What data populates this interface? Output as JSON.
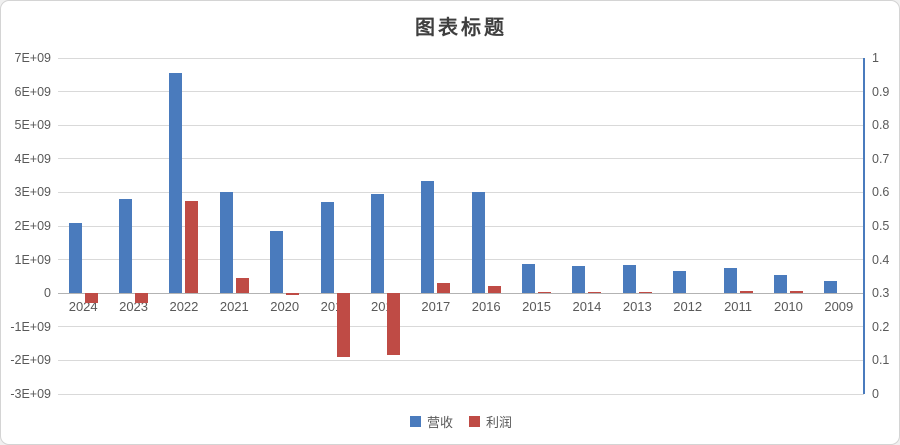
{
  "chart_data": {
    "type": "bar",
    "title": "图表标题",
    "categories": [
      "2024",
      "2023",
      "2022",
      "2021",
      "2020",
      "2019",
      "2018",
      "2017",
      "2016",
      "2015",
      "2014",
      "2013",
      "2012",
      "2011",
      "2010",
      "2009"
    ],
    "series": [
      {
        "key": "revenue",
        "name": "营收",
        "color": "#4a7bbd",
        "values": [
          2100000000,
          2800000000,
          6550000000,
          3000000000,
          1850000000,
          2700000000,
          2950000000,
          3350000000,
          3000000000,
          880000000,
          800000000,
          850000000,
          650000000,
          750000000,
          550000000,
          350000000
        ]
      },
      {
        "key": "profit",
        "name": "利润",
        "color": "#bf4b45",
        "values": [
          -300000000,
          -300000000,
          2750000000,
          450000000,
          -50000000,
          -1900000000,
          -1850000000,
          300000000,
          200000000,
          40000000,
          40000000,
          40000000,
          0,
          60000000,
          60000000,
          0
        ]
      }
    ],
    "left_axis": {
      "min": -3000000000,
      "max": 7000000000,
      "tick_step": 1000000000,
      "tick_labels": [
        "7E+09",
        "6E+09",
        "5E+09",
        "4E+09",
        "3E+09",
        "2E+09",
        "1E+09",
        "0",
        "-1E+09",
        "-2E+09",
        "-3E+09"
      ]
    },
    "right_axis": {
      "min": 0,
      "max": 1,
      "tick_labels": [
        "1",
        "0.9",
        "0.8",
        "0.7",
        "0.6",
        "0.5",
        "0.4",
        "0.3",
        "0.2",
        "0.1",
        "0"
      ]
    },
    "grid": true,
    "legend_position": "bottom",
    "colors": {
      "gridline": "#d9d9d9",
      "zero_line": "#b3b3b3",
      "secondary_axis_line": "#4a7bbd",
      "axis_text": "#595959",
      "title_text": "#3f3f3f"
    }
  }
}
